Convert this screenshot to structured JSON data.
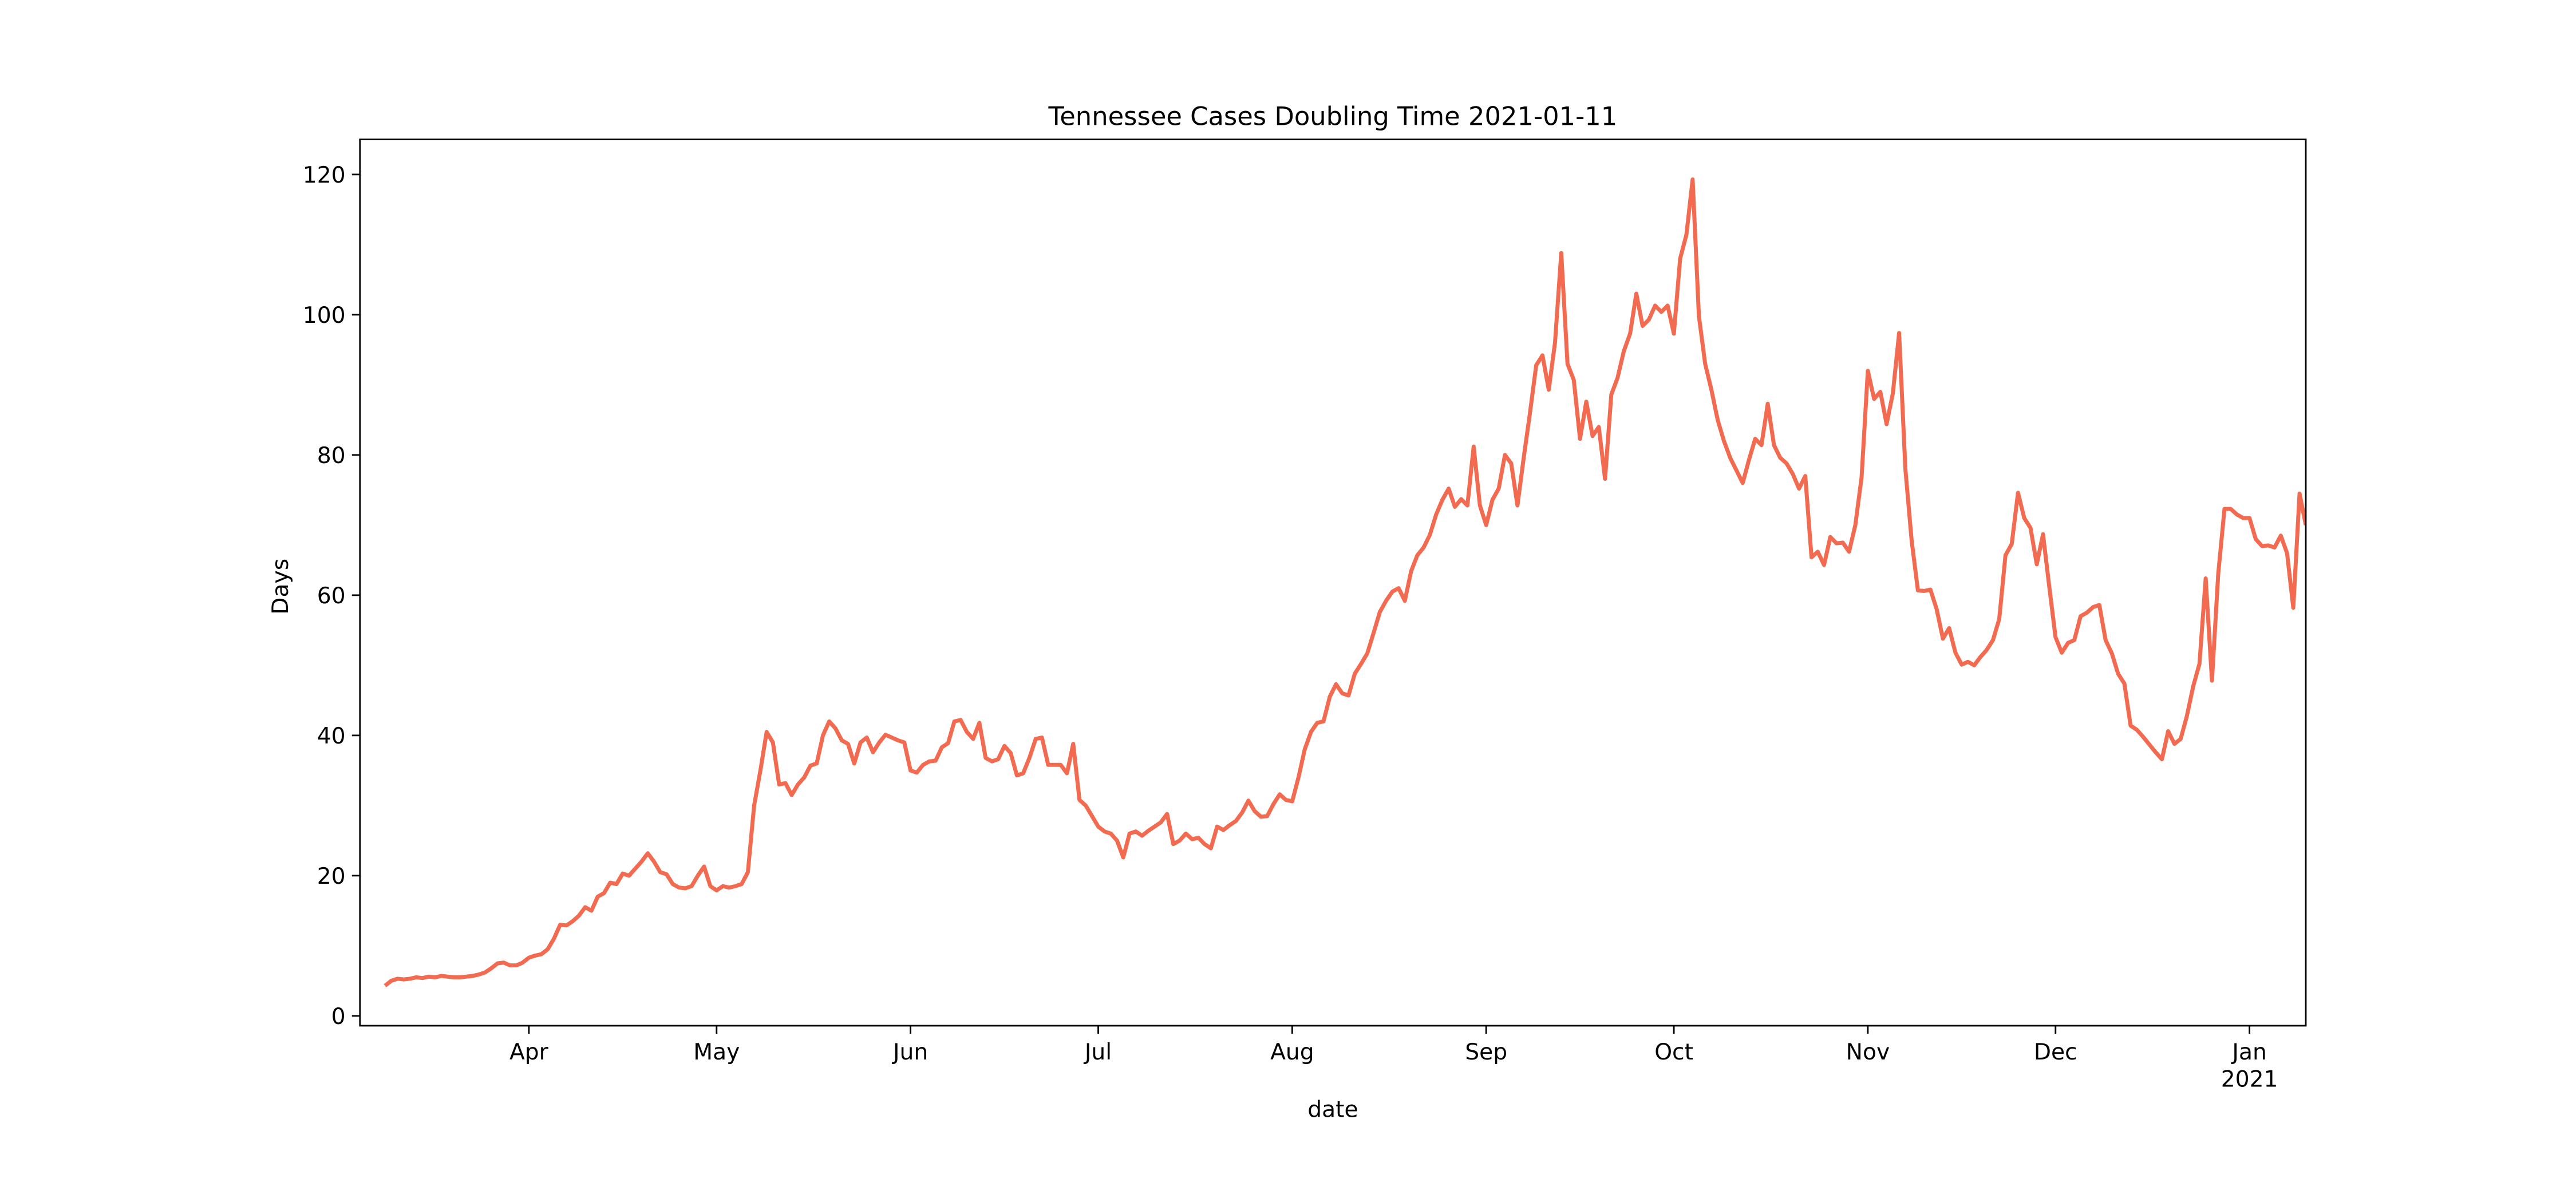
{
  "chart_data": {
    "type": "line",
    "title": "Tennessee Cases Doubling Time 2021-01-11",
    "xlabel": "date",
    "ylabel": "Days",
    "color": "#f26a4f",
    "values": [
      4.3,
      5.0,
      5.3,
      5.2,
      5.3,
      5.5,
      5.4,
      5.6,
      5.5,
      5.7,
      5.6,
      5.5,
      5.5,
      5.6,
      5.7,
      5.9,
      6.2,
      6.8,
      7.5,
      7.6,
      7.2,
      7.2,
      7.6,
      8.3,
      8.6,
      8.8,
      9.5,
      11.0,
      13.0,
      12.9,
      13.5,
      14.3,
      15.5,
      15.0,
      17.0,
      17.5,
      19.0,
      18.8,
      20.3,
      20.0,
      21.0,
      22.0,
      23.2,
      22.0,
      20.5,
      20.2,
      18.8,
      18.3,
      18.2,
      18.5,
      20.0,
      21.3,
      18.5,
      17.9,
      18.5,
      18.3,
      18.5,
      18.8,
      20.5,
      30.0,
      35.0,
      40.5,
      39.0,
      33.0,
      33.2,
      31.5,
      33.0,
      34.0,
      35.7,
      36.0,
      40.0,
      42.0,
      41.0,
      39.3,
      38.8,
      36.0,
      39.0,
      39.7,
      37.6,
      39.0,
      40.1,
      39.7,
      39.3,
      39.0,
      35.0,
      34.7,
      35.8,
      36.3,
      36.4,
      38.3,
      38.9,
      42.0,
      42.2,
      40.5,
      39.5,
      41.8,
      36.8,
      36.3,
      36.6,
      38.5,
      37.5,
      34.3,
      34.6,
      36.8,
      39.5,
      39.7,
      35.8,
      35.8,
      35.8,
      34.6,
      38.8,
      30.8,
      30.0,
      28.5,
      27.0,
      26.3,
      26.0,
      25.0,
      22.6,
      26.0,
      26.3,
      25.7,
      26.4,
      27.0,
      27.6,
      28.8,
      24.5,
      25.0,
      26.0,
      25.2,
      25.4,
      24.5,
      23.9,
      27.0,
      26.5,
      27.2,
      27.8,
      29.0,
      30.7,
      29.2,
      28.4,
      28.5,
      30.2,
      31.6,
      30.8,
      30.6,
      34.0,
      38.0,
      40.5,
      41.8,
      42.0,
      45.5,
      47.3,
      46.0,
      45.7,
      48.8,
      50.2,
      51.7,
      54.6,
      57.6,
      59.2,
      60.5,
      61.0,
      59.2,
      63.4,
      65.7,
      66.8,
      68.6,
      71.5,
      73.6,
      75.2,
      72.6,
      73.7,
      72.8,
      81.2,
      72.8,
      70.0,
      73.6,
      75.2,
      80.0,
      78.8,
      72.8,
      79.6,
      86.0,
      92.8,
      94.2,
      89.3,
      96.0,
      108.8,
      93.0,
      90.7,
      82.3,
      87.6,
      82.7,
      84.0,
      76.6,
      88.6,
      91.0,
      94.8,
      97.3,
      103.0,
      98.4,
      99.3,
      101.3,
      100.4,
      101.3,
      97.3,
      108.0,
      111.4,
      119.3,
      99.8,
      93.0,
      89.3,
      85.0,
      82.0,
      79.6,
      77.8,
      76.0,
      79.3,
      82.3,
      81.4,
      87.3,
      81.4,
      79.6,
      78.8,
      77.3,
      75.2,
      77.0,
      65.4,
      66.2,
      64.3,
      68.3,
      67.4,
      67.5,
      66.2,
      70.0,
      76.8,
      92.0,
      88.0,
      89.0,
      84.4,
      88.8,
      97.4,
      78.0,
      67.8,
      60.7,
      60.6,
      60.8,
      58.0,
      53.8,
      55.3,
      51.8,
      50.1,
      50.5,
      50.0,
      51.2,
      52.2,
      53.6,
      56.6,
      65.7,
      67.3,
      74.6,
      71.0,
      69.6,
      64.4,
      68.7,
      61.2,
      54.0,
      51.8,
      53.2,
      53.6,
      57.0,
      57.5,
      58.3,
      58.6,
      53.6,
      51.7,
      48.8,
      47.4,
      41.4,
      40.8,
      39.8,
      38.7,
      37.6,
      36.6,
      40.6,
      38.8,
      39.5,
      42.8,
      47.0,
      50.2,
      62.4,
      47.8,
      63.0,
      72.3,
      72.3,
      71.5,
      71.0,
      71.0,
      68.0,
      67.0,
      67.1,
      66.8,
      68.5,
      66.0,
      58.2,
      74.5,
      70.0
    ],
    "xlim": [
      -4,
      307
    ],
    "xticks": [
      {
        "value": 23,
        "label": "Apr"
      },
      {
        "value": 53,
        "label": "May"
      },
      {
        "value": 84,
        "label": "Jun"
      },
      {
        "value": 114,
        "label": "Jul"
      },
      {
        "value": 145,
        "label": "Aug"
      },
      {
        "value": 176,
        "label": "Sep"
      },
      {
        "value": 206,
        "label": "Oct"
      },
      {
        "value": 237,
        "label": "Nov"
      },
      {
        "value": 267,
        "label": "Dec"
      },
      {
        "value": 298,
        "label": "Jan"
      }
    ],
    "x_year_label": "2021",
    "ylim": [
      -1.4,
      125
    ],
    "yticks": [
      0,
      20,
      40,
      60,
      80,
      100,
      120
    ]
  }
}
